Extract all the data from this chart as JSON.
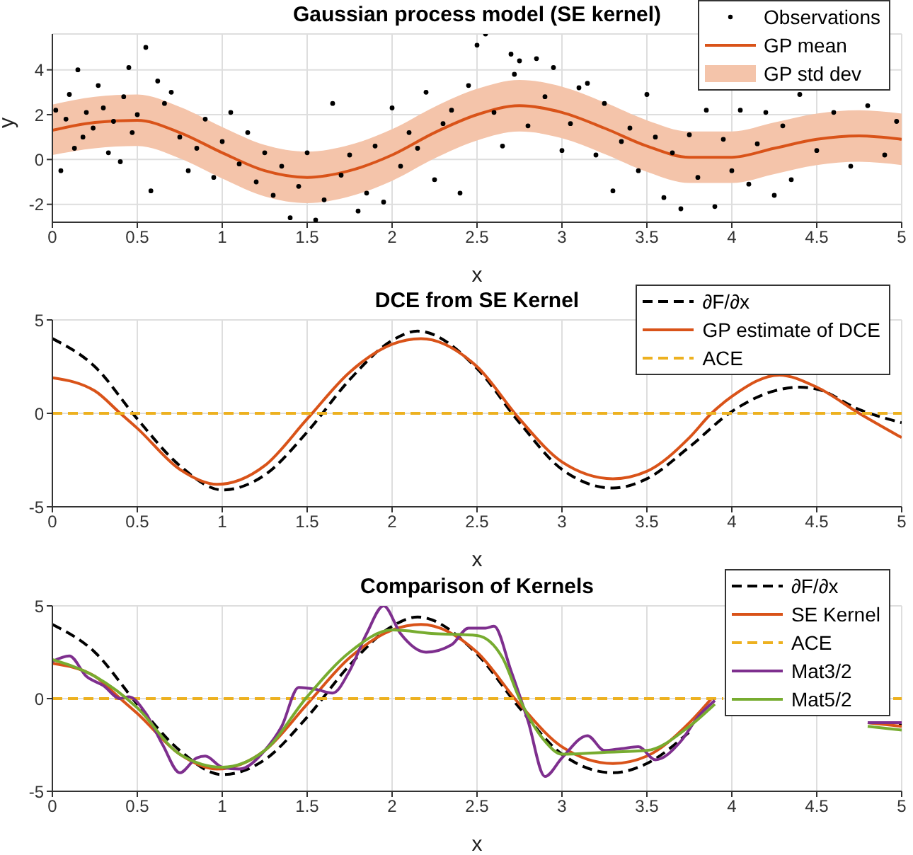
{
  "chart_data": [
    {
      "type": "line",
      "title": "Gaussian process model (SE kernel)",
      "xlabel": "x",
      "ylabel": "y",
      "xlim": [
        0,
        5
      ],
      "xticks": [
        0,
        0.5,
        1,
        1.5,
        2,
        2.5,
        3,
        3.5,
        4,
        4.5,
        5
      ],
      "ylim": [
        -2.8,
        5.6
      ],
      "yticks": [
        -2,
        0,
        2,
        4
      ],
      "grid": true,
      "legend": "top right",
      "series": [
        {
          "name": "Observations",
          "type": "scatter",
          "marker": "circle",
          "color": "#000000",
          "x": [
            0.02,
            0.05,
            0.08,
            0.1,
            0.13,
            0.15,
            0.18,
            0.2,
            0.24,
            0.27,
            0.3,
            0.33,
            0.36,
            0.4,
            0.42,
            0.45,
            0.47,
            0.5,
            0.55,
            0.58,
            0.62,
            0.66,
            0.7,
            0.75,
            0.8,
            0.85,
            0.9,
            0.95,
            1.0,
            1.05,
            1.1,
            1.15,
            1.2,
            1.25,
            1.3,
            1.35,
            1.4,
            1.45,
            1.5,
            1.55,
            1.6,
            1.65,
            1.7,
            1.75,
            1.8,
            1.85,
            1.9,
            1.95,
            2.0,
            2.05,
            2.1,
            2.15,
            2.2,
            2.25,
            2.3,
            2.35,
            2.4,
            2.45,
            2.5,
            2.55,
            2.6,
            2.65,
            2.7,
            2.72,
            2.75,
            2.8,
            2.85,
            2.9,
            2.95,
            3.0,
            3.05,
            3.1,
            3.15,
            3.2,
            3.25,
            3.3,
            3.35,
            3.4,
            3.45,
            3.5,
            3.55,
            3.6,
            3.65,
            3.7,
            3.75,
            3.8,
            3.85,
            3.9,
            3.95,
            4.0,
            4.05,
            4.1,
            4.15,
            4.2,
            4.25,
            4.3,
            4.35,
            4.4,
            4.5,
            4.6,
            4.7,
            4.8,
            4.9,
            4.97
          ],
          "values": [
            2.2,
            -0.5,
            1.8,
            2.9,
            0.5,
            4.0,
            1.0,
            2.1,
            1.4,
            3.3,
            2.3,
            0.3,
            1.7,
            -0.1,
            2.8,
            4.1,
            1.2,
            2.0,
            5.0,
            -1.4,
            3.5,
            2.5,
            3.0,
            1.0,
            -0.5,
            0.5,
            1.8,
            -0.8,
            0.8,
            2.1,
            -0.2,
            1.2,
            -1.0,
            0.3,
            -1.6,
            -0.3,
            -2.6,
            -1.2,
            0.3,
            -2.7,
            -1.8,
            2.5,
            -0.7,
            0.2,
            -2.3,
            -1.5,
            0.6,
            -1.9,
            2.3,
            -0.3,
            1.2,
            0.5,
            3.0,
            -0.9,
            1.6,
            2.2,
            -1.5,
            3.3,
            5.1,
            5.6,
            2.1,
            0.6,
            4.7,
            3.8,
            4.4,
            1.5,
            4.5,
            2.8,
            4.1,
            0.4,
            1.6,
            3.2,
            3.4,
            0.2,
            2.5,
            -1.4,
            0.8,
            1.4,
            -0.5,
            2.9,
            1.0,
            -1.7,
            0.3,
            -2.2,
            1.1,
            -0.8,
            2.2,
            -2.1,
            0.9,
            -0.5,
            2.2,
            -1.1,
            0.7,
            2.1,
            -1.6,
            1.5,
            -0.9,
            2.9,
            0.4,
            2.1,
            -0.3,
            2.4,
            0.2,
            1.7
          ]
        },
        {
          "name": "GP mean",
          "type": "line",
          "color": "#d95319",
          "x": [
            0,
            0.25,
            0.5,
            0.75,
            1,
            1.25,
            1.5,
            1.75,
            2,
            2.25,
            2.5,
            2.75,
            3,
            3.25,
            3.5,
            3.75,
            4,
            4.25,
            4.5,
            4.75,
            5
          ],
          "values": [
            1.3,
            1.65,
            1.75,
            1.2,
            0.3,
            -0.5,
            -0.8,
            -0.5,
            0.2,
            1.2,
            2.0,
            2.4,
            2.1,
            1.4,
            0.6,
            0.1,
            0.1,
            0.5,
            0.9,
            1.05,
            0.9
          ],
          "lower": [
            0.2,
            0.5,
            0.6,
            0.05,
            -0.85,
            -1.65,
            -1.95,
            -1.65,
            -0.95,
            0.05,
            0.85,
            1.25,
            0.95,
            0.25,
            -0.55,
            -1.05,
            -1.05,
            -0.65,
            -0.25,
            -0.1,
            -0.25
          ],
          "upper": [
            2.45,
            2.8,
            2.9,
            2.35,
            1.45,
            0.65,
            0.35,
            0.65,
            1.35,
            2.35,
            3.15,
            3.55,
            3.25,
            2.55,
            1.75,
            1.25,
            1.25,
            1.65,
            2.05,
            2.2,
            2.05
          ]
        },
        {
          "name": "GP std dev",
          "type": "area",
          "color": "#f4c4aa"
        }
      ]
    },
    {
      "type": "line",
      "title": "DCE from SE Kernel",
      "xlabel": "x",
      "xlim": [
        0,
        5
      ],
      "xticks": [
        0,
        0.5,
        1,
        1.5,
        2,
        2.5,
        3,
        3.5,
        4,
        4.5,
        5
      ],
      "ylim": [
        -5,
        5
      ],
      "yticks": [
        -5,
        0,
        5
      ],
      "grid": true,
      "legend": "top right",
      "series": [
        {
          "name": "∂F/∂x",
          "type": "line",
          "line_style": "dashed",
          "color": "#000000",
          "x": [
            0,
            0.25,
            0.5,
            0.75,
            1,
            1.25,
            1.5,
            1.75,
            2,
            2.15,
            2.5,
            2.75,
            3,
            3.3,
            3.5,
            3.75,
            4,
            4.25,
            4.4,
            4.5,
            4.75,
            5
          ],
          "values": [
            4,
            2.5,
            -0.3,
            -2.8,
            -4.1,
            -3.3,
            -1,
            1.8,
            3.9,
            4.4,
            2.4,
            -0.5,
            -3,
            -4,
            -3.5,
            -1.8,
            0.1,
            1.2,
            1.4,
            1.3,
            0.2,
            -0.5
          ]
        },
        {
          "name": "GP estimate of DCE",
          "type": "line",
          "color": "#d95319",
          "x": [
            0,
            0.25,
            0.4,
            0.5,
            0.75,
            0.97,
            1.25,
            1.5,
            1.75,
            2,
            2.17,
            2.5,
            2.75,
            3,
            3.3,
            3.5,
            3.75,
            3.88,
            4,
            4.28,
            4.5,
            4.75,
            5
          ],
          "values": [
            1.9,
            1.2,
            0,
            -0.8,
            -3,
            -3.8,
            -2.8,
            -0.3,
            2.2,
            3.7,
            4,
            2.5,
            -0.3,
            -2.6,
            -3.5,
            -3.1,
            -1.3,
            0,
            0.9,
            2.05,
            1.4,
            0,
            -1.3
          ]
        },
        {
          "name": "ACE",
          "type": "line",
          "line_style": "dashed",
          "color": "#edb120",
          "x": [
            0,
            5
          ],
          "values": [
            0,
            0
          ]
        }
      ]
    },
    {
      "type": "line",
      "title": "Comparison of Kernels",
      "xlabel": "x",
      "xlim": [
        0,
        5
      ],
      "xticks": [
        0,
        0.5,
        1,
        1.5,
        2,
        2.5,
        3,
        3.5,
        4,
        4.5,
        5
      ],
      "ylim": [
        -5,
        5
      ],
      "yticks": [
        -5,
        0,
        5
      ],
      "grid": true,
      "legend": "top right",
      "series": [
        {
          "name": "∂F/∂x",
          "type": "line",
          "line_style": "dashed",
          "color": "#000000",
          "x": [
            0,
            0.25,
            0.5,
            0.75,
            1,
            1.25,
            1.5,
            1.75,
            2,
            2.15,
            2.5,
            2.75,
            3,
            3.3,
            3.5,
            3.75,
            4,
            4.3,
            4.8,
            5
          ],
          "values": [
            4,
            2.5,
            -0.3,
            -2.8,
            -4.1,
            -3.3,
            -1,
            1.8,
            3.9,
            4.4,
            2.4,
            -0.5,
            -3,
            -4,
            -3.5,
            -1.8,
            null,
            null,
            -1.3,
            -1.4
          ]
        },
        {
          "name": "SE Kernel",
          "type": "line",
          "color": "#d95319",
          "x": [
            0,
            0.25,
            0.4,
            0.5,
            0.75,
            0.97,
            1.25,
            1.5,
            1.75,
            2,
            2.17,
            2.5,
            2.75,
            3,
            3.3,
            3.5,
            3.75,
            3.88,
            4,
            4.3,
            4.8,
            5
          ],
          "values": [
            1.9,
            1.2,
            0,
            -0.8,
            -3,
            -3.8,
            -2.8,
            -0.3,
            2.2,
            3.7,
            4,
            2.5,
            -0.3,
            -2.6,
            -3.5,
            -3.1,
            -1.3,
            0,
            null,
            null,
            -1.3,
            -1.5
          ]
        },
        {
          "name": "ACE",
          "type": "line",
          "line_style": "dashed",
          "color": "#edb120",
          "x": [
            0,
            3.95,
            4.3,
            4.95,
            5
          ],
          "values": [
            0,
            0,
            null,
            0,
            0
          ]
        },
        {
          "name": "Mat3/2",
          "type": "line",
          "color": "#7e2f8e",
          "x": [
            0,
            0.1,
            0.2,
            0.3,
            0.4,
            0.45,
            0.55,
            0.65,
            0.75,
            0.85,
            0.9,
            1,
            1.1,
            1.25,
            1.35,
            1.45,
            1.55,
            1.65,
            1.75,
            1.85,
            1.95,
            2.05,
            2.2,
            2.35,
            2.45,
            2.55,
            2.6,
            2.7,
            2.8,
            2.9,
            3,
            3.15,
            3.25,
            3.35,
            3.45,
            3.55,
            3.7,
            3.8,
            3.9,
            4,
            4.3,
            4.8,
            5
          ],
          "values": [
            2,
            2.3,
            1.2,
            0.7,
            0,
            0.1,
            -0.8,
            -2.5,
            -4,
            -3.2,
            -3.1,
            -3.7,
            -3.8,
            -2.8,
            -1.5,
            0.6,
            0.5,
            0.3,
            1.5,
            3.5,
            5,
            3.5,
            2.5,
            2.9,
            3.8,
            3.8,
            3.9,
            1.5,
            -1.2,
            -4.2,
            -3.2,
            -2,
            -2.8,
            -2.7,
            -2.6,
            -3.3,
            -2.3,
            -1,
            -0.1,
            null,
            null,
            -1.3,
            -1.3
          ]
        },
        {
          "name": "Mat5/2",
          "type": "line",
          "color": "#77ac30",
          "x": [
            0,
            0.25,
            0.5,
            0.75,
            1,
            1.25,
            1.5,
            1.75,
            2,
            2.25,
            2.5,
            2.65,
            2.75,
            2.9,
            3,
            3.25,
            3.5,
            3.75,
            3.9,
            4,
            4.3,
            4.8,
            5
          ],
          "values": [
            2.1,
            1.2,
            -0.5,
            -3,
            -3.7,
            -2.8,
            0.1,
            2.5,
            3.7,
            3.5,
            3.4,
            2.2,
            0,
            -2.3,
            -3,
            -2.9,
            -2.8,
            -1.5,
            -0.3,
            null,
            null,
            -1.5,
            -1.7
          ]
        }
      ]
    }
  ]
}
